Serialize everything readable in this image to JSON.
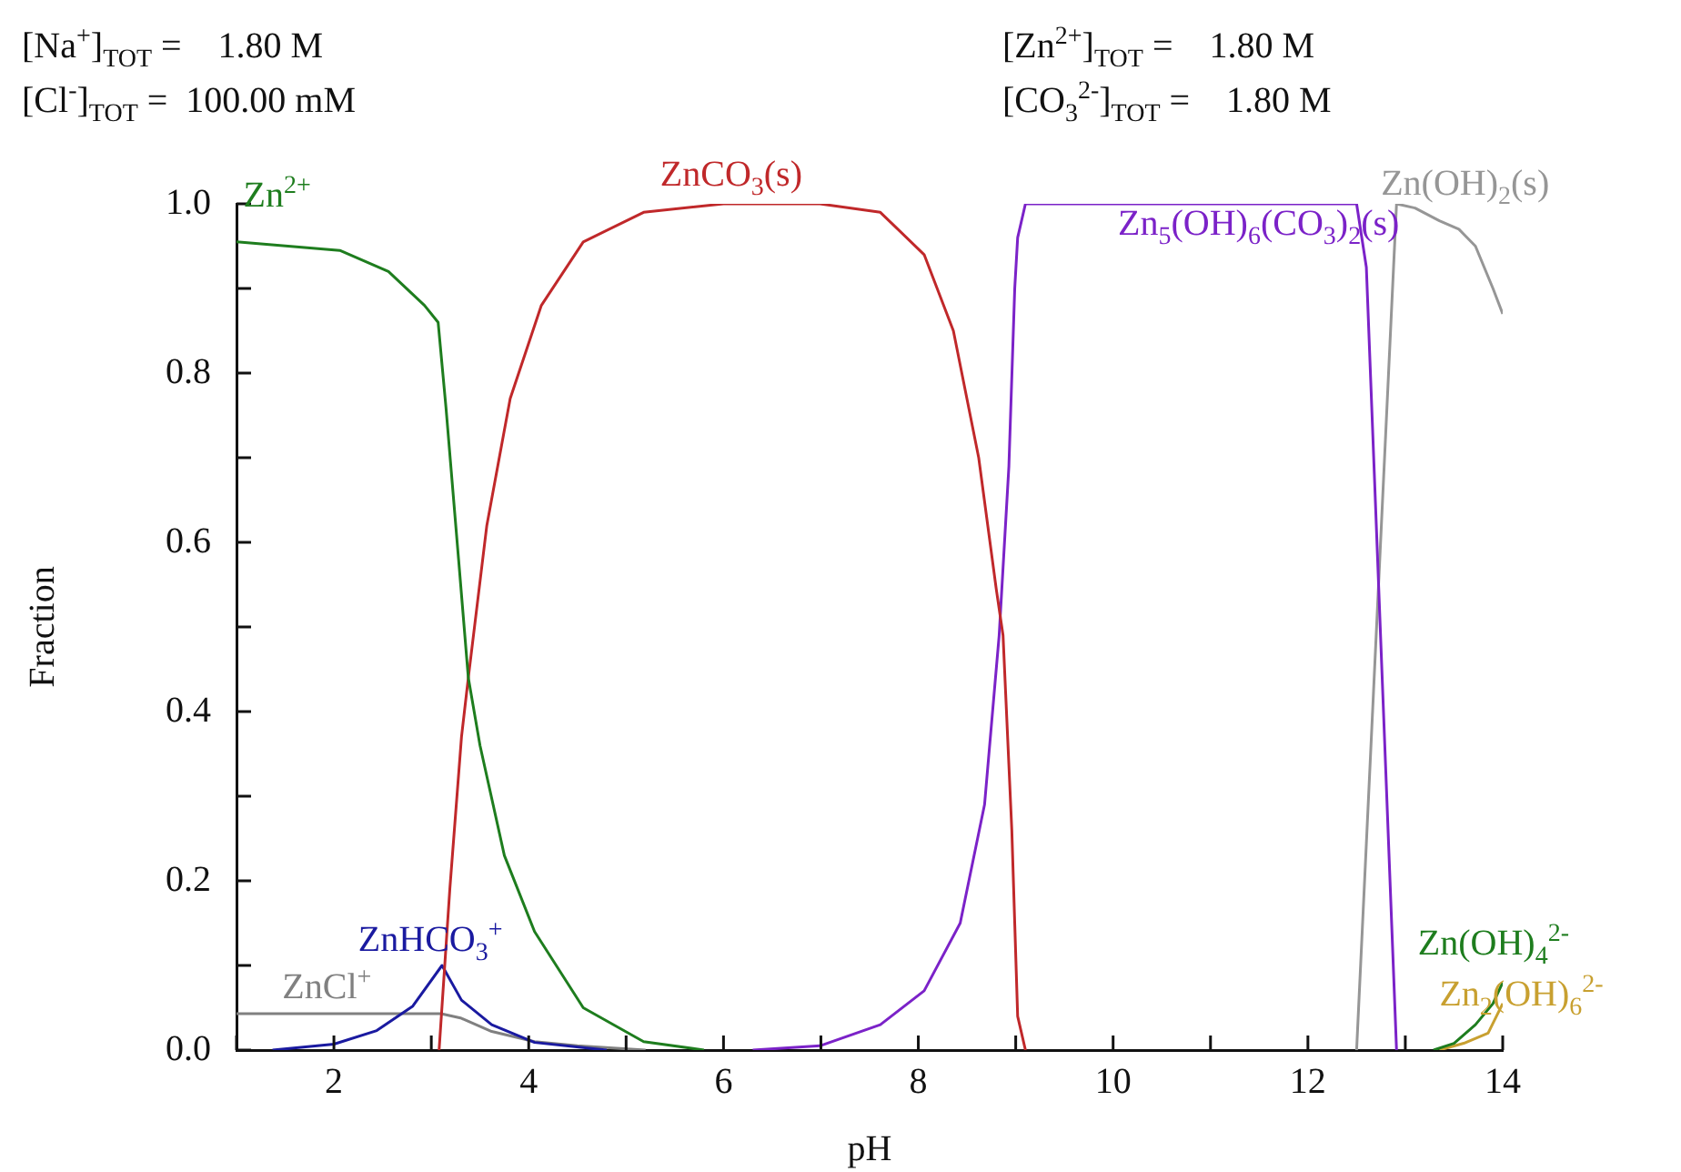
{
  "chart_data": {
    "type": "line",
    "xlabel": "pH",
    "ylabel": "Fraction",
    "annotations": [
      "[Na$^{+}$]$_{TOT}$ =    1.80 M",
      "[Cl$^{-}$]$_{TOT}$ =  100.00 mM",
      "[Zn$^{2+}$]$_{TOT}$ =    1.80 M",
      "[CO$_{3}$$^{2-}$]$_{TOT}$ =    1.80 M"
    ],
    "xlim": [
      1,
      14
    ],
    "xticks": [
      {
        "value": 1,
        "label": null
      },
      2,
      {
        "value": 3,
        "label": null
      },
      4,
      {
        "value": 5,
        "label": null
      },
      6,
      {
        "value": 7,
        "label": null
      },
      8,
      {
        "value": 9,
        "label": null
      },
      10,
      {
        "value": 11,
        "label": null
      },
      12,
      {
        "value": 13,
        "label": null
      },
      14
    ],
    "ylim": [
      0,
      1
    ],
    "yticks": [
      {
        "value": 0,
        "label": "0.0"
      },
      {
        "value": 0.1,
        "label": null
      },
      {
        "value": 0.2,
        "label": "0.2"
      },
      {
        "value": 0.3,
        "label": null
      },
      {
        "value": 0.4,
        "label": "0.4"
      },
      {
        "value": 0.5,
        "label": null
      },
      {
        "value": 0.6,
        "label": "0.6"
      },
      {
        "value": 0.7,
        "label": null
      },
      {
        "value": 0.8,
        "label": "0.8"
      },
      {
        "value": 0.9,
        "label": null
      },
      {
        "value": 1,
        "label": "1.0"
      }
    ],
    "series": [
      {
        "name": "Zn$^{2+}$",
        "color": "#1e7d1e",
        "x": [
          1,
          2.06,
          2.56,
          2.93,
          3.07,
          3.15,
          3.28,
          3.38,
          3.5,
          3.75,
          4.06,
          4.56,
          5.18,
          5.8
        ],
        "values": [
          0.955,
          0.945,
          0.92,
          0.88,
          0.86,
          0.76,
          0.58,
          0.44,
          0.36,
          0.23,
          0.14,
          0.05,
          0.01,
          0
        ]
      },
      {
        "name": "ZnCO$_{3}$(s)",
        "color": "#c0282a",
        "x": [
          3.08,
          3.19,
          3.31,
          3.38,
          3.57,
          3.81,
          4.13,
          4.56,
          5.18,
          6,
          6.99,
          7.61,
          8.06,
          8.36,
          8.62,
          8.8,
          8.87,
          8.96,
          9.02,
          9.1
        ],
        "values": [
          0,
          0.19,
          0.37,
          0.44,
          0.62,
          0.77,
          0.88,
          0.955,
          0.99,
          1,
          1,
          0.99,
          0.94,
          0.85,
          0.7,
          0.545,
          0.49,
          0.26,
          0.04,
          0
        ]
      },
      {
        "name": "Zn$_{5}$(OH)$_{6}$(CO$_{3}$)$_{2}$(s)",
        "color": "#7b22c8",
        "x": [
          6.3,
          6.99,
          7.61,
          8.06,
          8.43,
          8.68,
          8.83,
          8.93,
          8.99,
          9.02,
          9.1,
          12.5,
          12.6,
          12.91
        ],
        "values": [
          0,
          0.005,
          0.03,
          0.07,
          0.15,
          0.29,
          0.49,
          0.69,
          0.9,
          0.96,
          1,
          1,
          0.925,
          0
        ]
      },
      {
        "name": "Zn(OH)$_{2}$(s)",
        "color": "#969696",
        "x": [
          12.5,
          12.91,
          13.1,
          13.35,
          13.55,
          13.72,
          13.9,
          14
        ],
        "values": [
          0,
          1,
          0.995,
          0.98,
          0.97,
          0.95,
          0.9,
          0.87
        ]
      },
      {
        "name": "ZnHCO$_{3}$$^{+}$",
        "color": "#1a1aa0",
        "x": [
          1.37,
          2,
          2.44,
          2.81,
          3.11,
          3.31,
          3.62,
          4.06,
          4.8
        ],
        "values": [
          0,
          0.007,
          0.023,
          0.052,
          0.1,
          0.059,
          0.03,
          0.009,
          0
        ]
      },
      {
        "name": "ZnCl$^{+}$",
        "color": "#808080",
        "x": [
          1,
          2,
          3.1,
          3.3,
          3.62,
          4.06,
          4.5,
          5.2
        ],
        "values": [
          0.043,
          0.043,
          0.043,
          0.038,
          0.022,
          0.01,
          0.005,
          0
        ]
      },
      {
        "name": "Zn(OH)$_{4}$$^{2-}$",
        "color": "#1e7d1e",
        "x": [
          13.29,
          13.5,
          13.72,
          13.9,
          14
        ],
        "values": [
          0,
          0.008,
          0.03,
          0.055,
          0.08
        ]
      },
      {
        "name": "Zn$_{2}$(OH)$_{6}$$^{2-}$",
        "color": "#c8a030",
        "x": [
          13.35,
          13.6,
          13.85,
          14
        ],
        "values": [
          0,
          0.008,
          0.02,
          0.055
        ]
      }
    ]
  }
}
